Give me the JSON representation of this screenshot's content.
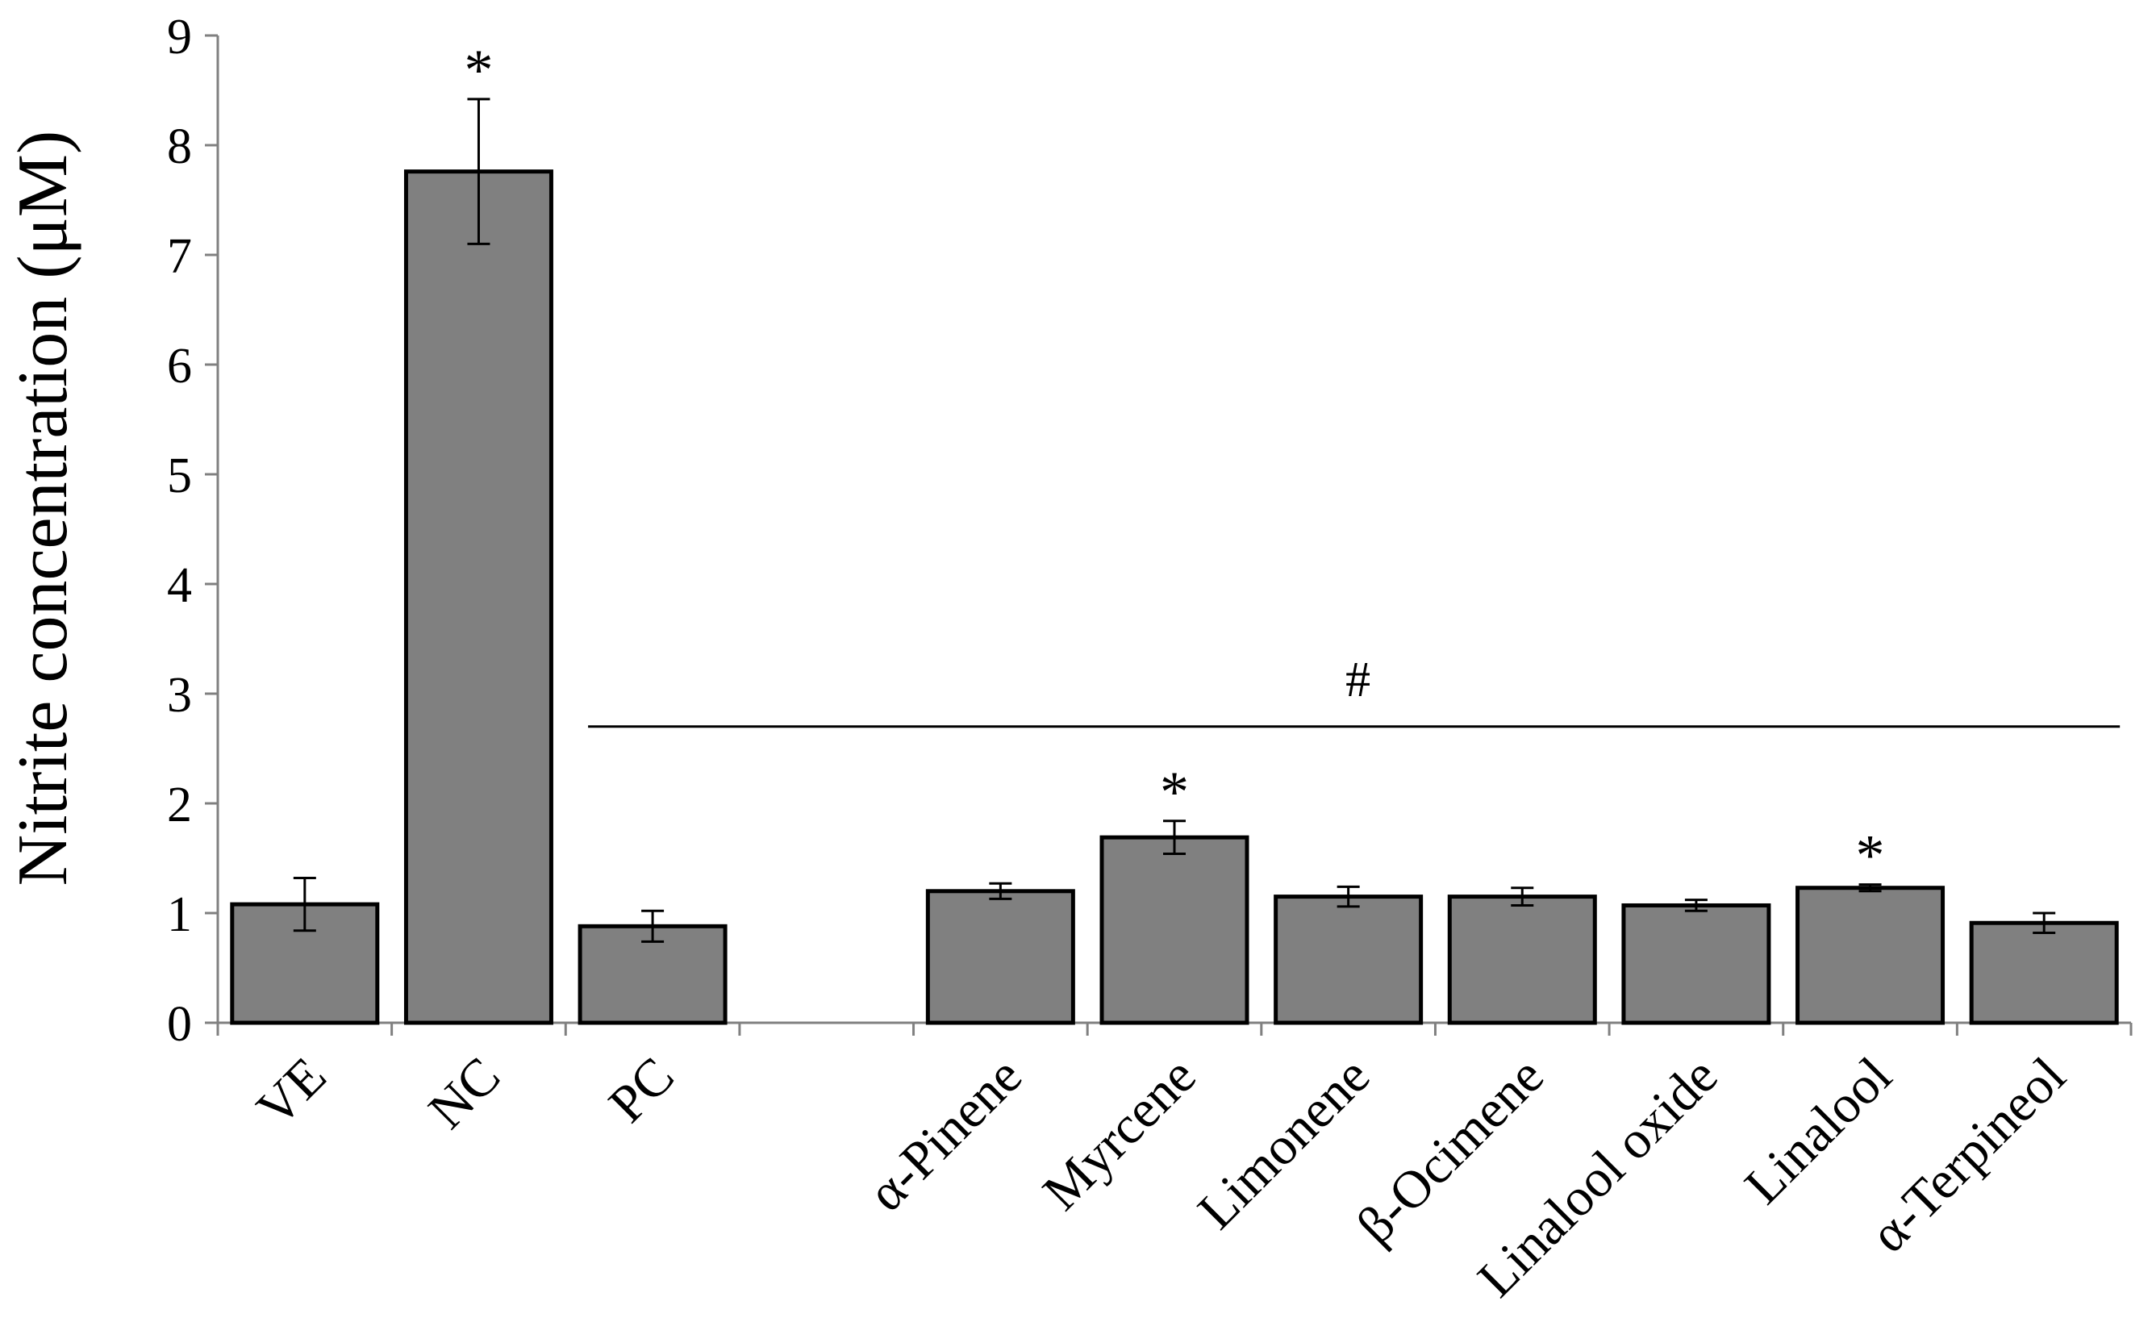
{
  "chart_data": {
    "type": "bar",
    "title": "",
    "xlabel": "",
    "ylabel": "Nitrite concentration (μM)",
    "ylim": [
      0,
      9
    ],
    "yticks": [
      0,
      1,
      2,
      3,
      4,
      5,
      6,
      7,
      8,
      9
    ],
    "grid": false,
    "categories": [
      "VE",
      "NC",
      "PC",
      "",
      "α-Pinene",
      "Myrcene",
      "Limonene",
      "β-Ocimene",
      "Linalool oxide",
      "Linalool",
      "α-Terpineol"
    ],
    "values": [
      1.08,
      7.76,
      0.88,
      null,
      1.2,
      1.69,
      1.15,
      1.15,
      1.07,
      1.23,
      0.91
    ],
    "errors": [
      0.24,
      0.66,
      0.14,
      null,
      0.07,
      0.15,
      0.09,
      0.08,
      0.05,
      0.03,
      0.09
    ],
    "significance": [
      "",
      "*",
      "",
      "",
      "",
      "*",
      "",
      "",
      "",
      "*",
      ""
    ],
    "group_annotation": {
      "symbol": "#",
      "from": "PC",
      "to": "α-Terpineol",
      "y": 2.7
    },
    "colors": {
      "bar_fill": "#808080",
      "bar_stroke": "#000000",
      "axis": "#808080",
      "text": "#000000"
    }
  }
}
